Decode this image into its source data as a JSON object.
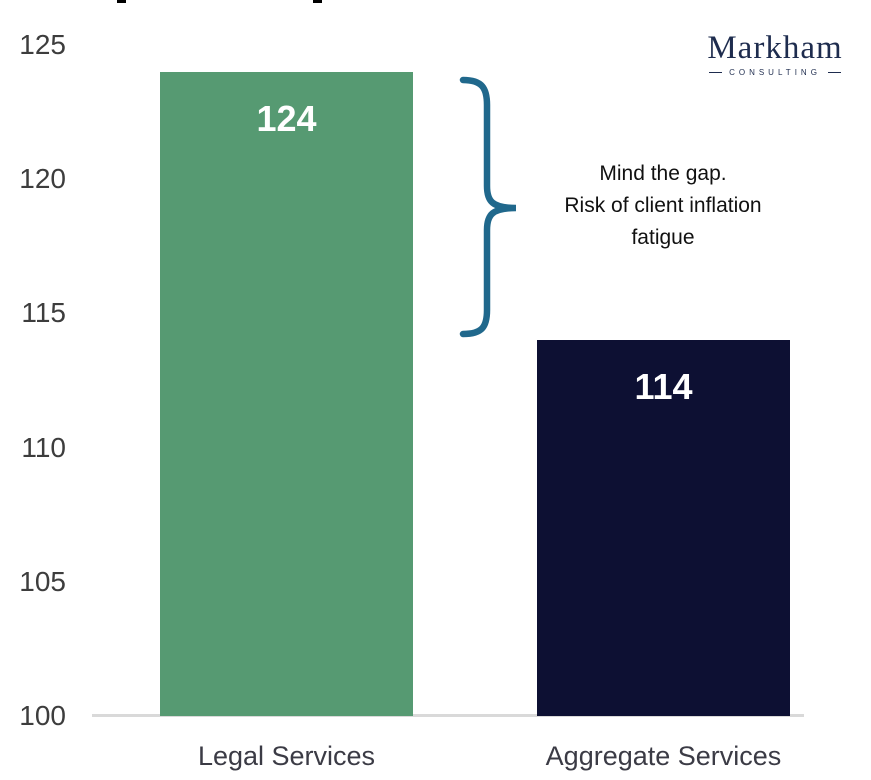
{
  "logo": {
    "name": "Markham",
    "subtitle": "CONSULTING",
    "color": "#1E2C4E"
  },
  "annotation": {
    "lines": [
      "Mind the gap.",
      "Risk of client inflation",
      "fatigue"
    ],
    "brace_color": "#20688C"
  },
  "chart_data": {
    "type": "bar",
    "categories": [
      "Legal Services",
      "Aggregate Services"
    ],
    "values": [
      124,
      114
    ],
    "value_labels": [
      "124",
      "114"
    ],
    "bar_colors": [
      "#569A72",
      "#0D1033"
    ],
    "yticks": [
      125,
      120,
      115,
      110,
      105,
      100
    ],
    "ylim": [
      100,
      125
    ],
    "title": "",
    "xlabel": "",
    "ylabel": "",
    "grid": false,
    "legend": false,
    "annotation_text": "Mind the gap. Risk of client inflation fatigue"
  }
}
